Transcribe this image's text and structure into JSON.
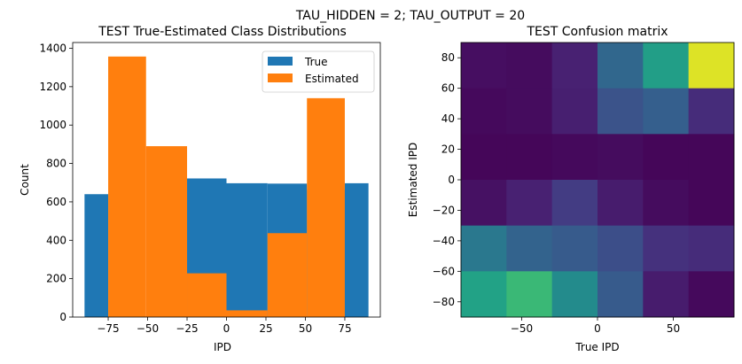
{
  "suptitle": "TAU_HIDDEN = 2; TAU_OUTPUT = 20",
  "colors": {
    "true": "#1f77b4",
    "estimated": "#ff7f0e",
    "axis": "#000000"
  },
  "chart_data": [
    {
      "type": "bar",
      "title": "TEST True-Estimated Class Distributions",
      "xlabel": "IPD",
      "ylabel": "Count",
      "xlim": [
        -97.5,
        97.5
      ],
      "ylim": [
        0,
        1430
      ],
      "xticks": [
        -75,
        -50,
        -25,
        0,
        25,
        50,
        75
      ],
      "xtick_labels": [
        "−75",
        "−50",
        "−25",
        "0",
        "25",
        "50",
        "75"
      ],
      "yticks": [
        0,
        200,
        400,
        600,
        800,
        1000,
        1200,
        1400
      ],
      "ytick_labels": [
        "0",
        "200",
        "400",
        "600",
        "800",
        "1000",
        "1200",
        "1400"
      ],
      "bin_edges": [
        -90,
        -75,
        -51,
        -25,
        0,
        26,
        51,
        75,
        90
      ],
      "legend": "top-right",
      "series": [
        {
          "name": "True",
          "values": [
            640,
            1,
            1,
            722,
            697,
            695,
            663,
            697
          ]
        },
        {
          "name": "Estimated",
          "values": [
            0,
            1357,
            890,
            228,
            35,
            437,
            1140,
            0
          ]
        }
      ]
    },
    {
      "type": "heatmap",
      "title": "TEST Confusion matrix",
      "xlabel": "True IPD",
      "ylabel": "Estimated IPD",
      "x_range": [
        -90,
        90
      ],
      "y_range": [
        -90,
        90
      ],
      "xticks": [
        -50,
        0,
        50
      ],
      "xtick_labels": [
        "−50",
        "0",
        "50"
      ],
      "yticks": [
        80,
        60,
        40,
        20,
        0,
        -20,
        -40,
        -60,
        -80
      ],
      "ytick_labels": [
        "80",
        "60",
        "40",
        "20",
        "0",
        "−20",
        "−40",
        "−60",
        "−80"
      ],
      "colormap": "viridis",
      "value_range": [
        0,
        1
      ],
      "rows_top_to_bottom": [
        [
          0.05,
          0.04,
          0.12,
          0.42,
          0.7,
          0.97
        ],
        [
          0.03,
          0.04,
          0.11,
          0.32,
          0.38,
          0.16
        ],
        [
          0.02,
          0.02,
          0.03,
          0.04,
          0.02,
          0.02
        ],
        [
          0.06,
          0.12,
          0.22,
          0.1,
          0.04,
          0.02
        ],
        [
          0.5,
          0.4,
          0.36,
          0.3,
          0.18,
          0.16
        ],
        [
          0.72,
          0.8,
          0.6,
          0.36,
          0.1,
          0.03
        ]
      ]
    }
  ]
}
